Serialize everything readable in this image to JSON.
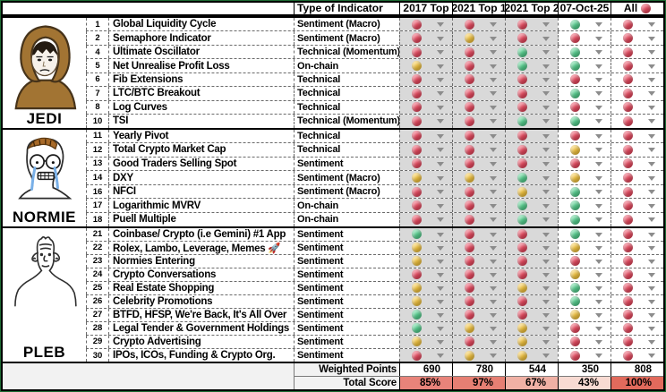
{
  "header": {
    "type_col_label": "Type of Indicator",
    "columns": [
      "2017 Top",
      "2021 Top 1",
      "2021 Top 2",
      "07-Oct-25",
      "All"
    ],
    "all_header_dot": "red"
  },
  "legend_colors": {
    "red": "#e84a60",
    "yellow": "#f3c440",
    "green": "#55cf8e"
  },
  "groups": [
    {
      "name": "JEDI",
      "rows": [
        {
          "num": "1",
          "indicator": "Global Liquidity Cycle",
          "type": "Sentiment (Macro)",
          "dots": [
            "red",
            "red",
            "red",
            "green",
            "red"
          ]
        },
        {
          "num": "2",
          "indicator": "Semaphore Indicator",
          "type": "Sentiment (Macro)",
          "dots": [
            "red",
            "yellow",
            "red",
            "red",
            "red"
          ]
        },
        {
          "num": "4",
          "indicator": "Ultimate Oscillator",
          "type": "Technical (Momentum)",
          "dots": [
            "red",
            "red",
            "green",
            "green",
            "red"
          ]
        },
        {
          "num": "5",
          "indicator": "Net Unrealise Profit Loss",
          "type": "On-chain",
          "dots": [
            "yellow",
            "red",
            "green",
            "green",
            "red"
          ]
        },
        {
          "num": "6",
          "indicator": "Fib Extensions",
          "type": "Technical",
          "dots": [
            "red",
            "red",
            "red",
            "red",
            "red"
          ]
        },
        {
          "num": "7",
          "indicator": "LTC/BTC Breakout",
          "type": "Technical",
          "dots": [
            "red",
            "red",
            "red",
            "green",
            "red"
          ]
        },
        {
          "num": "8",
          "indicator": "Log Curves",
          "type": "Technical",
          "dots": [
            "red",
            "red",
            "red",
            "red",
            "red"
          ]
        },
        {
          "num": "10",
          "indicator": "TSI",
          "type": "Technical (Momentum)",
          "dots": [
            "red",
            "red",
            "green",
            "green",
            "red"
          ]
        }
      ]
    },
    {
      "name": "NORMIE",
      "rows": [
        {
          "num": "11",
          "indicator": "Yearly Pivot",
          "type": "Technical",
          "dots": [
            "red",
            "red",
            "red",
            "red",
            "red"
          ]
        },
        {
          "num": "12",
          "indicator": "Total Crypto Market Cap",
          "type": "Technical",
          "dots": [
            "red",
            "red",
            "red",
            "yellow",
            "red"
          ]
        },
        {
          "num": "13",
          "indicator": "Good Traders Selling Spot",
          "type": "Sentiment",
          "dots": [
            "red",
            "red",
            "red",
            "red",
            "red"
          ]
        },
        {
          "num": "14",
          "indicator": "DXY",
          "type": "Sentiment (Macro)",
          "dots": [
            "yellow",
            "yellow",
            "green",
            "yellow",
            "red"
          ]
        },
        {
          "num": "16",
          "indicator": "NFCI",
          "type": "Sentiment (Macro)",
          "dots": [
            "red",
            "red",
            "yellow",
            "green",
            "red"
          ]
        },
        {
          "num": "17",
          "indicator": "Logarithmic MVRV",
          "type": "On-chain",
          "dots": [
            "red",
            "red",
            "green",
            "green",
            "red"
          ]
        },
        {
          "num": "18",
          "indicator": "Puell Multiple",
          "type": "On-chain",
          "dots": [
            "red",
            "red",
            "green",
            "green",
            "red"
          ]
        }
      ]
    },
    {
      "name": "PLEB",
      "rows": [
        {
          "num": "21",
          "indicator": "Coinbase/ Crypto (i.e Gemini) #1 App",
          "type": "Sentiment",
          "dots": [
            "green",
            "red",
            "red",
            "green",
            "red"
          ]
        },
        {
          "num": "22",
          "indicator": "Rolex, Lambo, Leverage, Memes 🚀",
          "type": "Sentiment",
          "dots": [
            "yellow",
            "red",
            "red",
            "yellow",
            "red"
          ]
        },
        {
          "num": "23",
          "indicator": "Normies Entering",
          "type": "Sentiment",
          "dots": [
            "yellow",
            "red",
            "red",
            "red",
            "red"
          ]
        },
        {
          "num": "24",
          "indicator": "Crypto Conversations",
          "type": "Sentiment",
          "dots": [
            "red",
            "red",
            "red",
            "yellow",
            "red"
          ]
        },
        {
          "num": "25",
          "indicator": "Real Estate Shopping",
          "type": "Sentiment",
          "dots": [
            "yellow",
            "red",
            "yellow",
            "green",
            "red"
          ]
        },
        {
          "num": "26",
          "indicator": "Celebrity Promotions",
          "type": "Sentiment",
          "dots": [
            "yellow",
            "red",
            "red",
            "green",
            "red"
          ]
        },
        {
          "num": "27",
          "indicator": "BTFD, HFSP, We're Back, It's All Over",
          "type": "Sentiment",
          "dots": [
            "green",
            "red",
            "red",
            "yellow",
            "red"
          ]
        },
        {
          "num": "28",
          "indicator": "Legal Tender & Government Holdings",
          "type": "Sentiment",
          "dots": [
            "green",
            "yellow",
            "yellow",
            "red",
            "red"
          ]
        },
        {
          "num": "29",
          "indicator": "Crypto Advertising",
          "type": "Sentiment",
          "dots": [
            "yellow",
            "red",
            "yellow",
            "red",
            "red"
          ]
        },
        {
          "num": "30",
          "indicator": "IPOs, ICOs, Funding & Crypto Org.",
          "type": "Sentiment",
          "dots": [
            "red",
            "yellow",
            "yellow",
            "red",
            "red"
          ]
        }
      ]
    }
  ],
  "summary": {
    "weighted_label": "Weighted Points",
    "weighted_values": [
      "690",
      "780",
      "544",
      "350",
      "808"
    ],
    "total_label": "Total Score",
    "total_values": [
      {
        "value": "85%",
        "bg": "#e8837a"
      },
      {
        "value": "97%",
        "bg": "#e67f73"
      },
      {
        "value": "67%",
        "bg": "#f0b1a5"
      },
      {
        "value": "43%",
        "bg": "#f8dad2"
      },
      {
        "value": "100%",
        "bg": "#e16a5c"
      }
    ]
  }
}
